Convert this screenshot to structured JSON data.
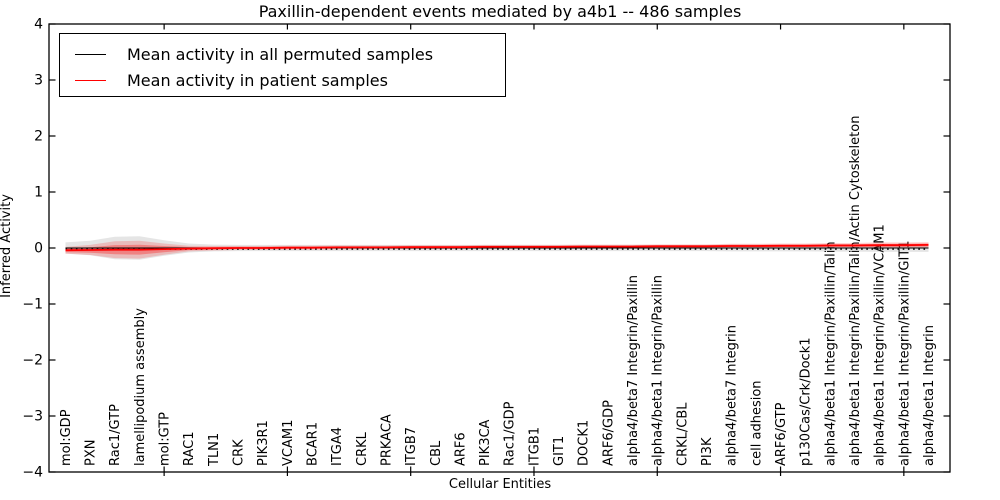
{
  "chart_data": {
    "type": "line",
    "title": "Paxillin-dependent events mediated by a4b1 -- 486 samples",
    "xlabel": "Cellular Entities",
    "ylabel": "Inferred Activity",
    "ylim": [
      -4,
      4
    ],
    "ytick_labels": [
      "4",
      "3",
      "2",
      "1",
      "0",
      "−1",
      "−2",
      "−3",
      "−4"
    ],
    "ytick_values": [
      4,
      3,
      2,
      1,
      0,
      -1,
      -2,
      -3,
      -4
    ],
    "grid": false,
    "legend_position": "upper left",
    "categories": [
      "mol:GDP",
      "PXN",
      "Rac1/GTP",
      "lamellipodium assembly",
      "mol:GTP",
      "RAC1",
      "TLN1",
      "CRK",
      "PIK3R1",
      "VCAM1",
      "BCAR1",
      "ITGA4",
      "CRKL",
      "PRKACA",
      "ITGB7",
      "CBL",
      "ARF6",
      "PIK3CA",
      "Rac1/GDP",
      "ITGB1",
      "GIT1",
      "DOCK1",
      "ARF6/GDP",
      "alpha4/beta7 Integrin/Paxillin",
      "alpha4/beta1 Integrin/Paxillin",
      "CRKL/CBL",
      "PI3K",
      "alpha4/beta7 Integrin",
      "cell adhesion",
      "ARF6/GTP",
      "p130Cas/Crk/Dock1",
      "alpha4/beta1 Integrin/Paxillin/Talin",
      "alpha4/beta1 Integrin/Paxillin/Talin/Actin Cytoskeleton",
      "alpha4/beta1 Integrin/Paxillin/VCAM1",
      "alpha4/beta1 Integrin/Paxillin/GIT1",
      "alpha4/beta1 Integrin"
    ],
    "series": [
      {
        "name": "Mean activity in all permuted samples",
        "color": "#000000",
        "style": "solid",
        "values": [
          0,
          0,
          0,
          0,
          0,
          0,
          0,
          0,
          0,
          0,
          0,
          0,
          0,
          0,
          0,
          0,
          0,
          0,
          0,
          0,
          0,
          0,
          0,
          0,
          0,
          0,
          0,
          0,
          0,
          0,
          0,
          0,
          0,
          0,
          0,
          0
        ]
      },
      {
        "name": "Mean activity in patient samples",
        "color": "#ff0000",
        "style": "solid",
        "values": [
          -0.04,
          -0.035,
          -0.03,
          -0.03,
          -0.02,
          -0.01,
          -0.005,
          0,
          0,
          0.005,
          0.005,
          0.01,
          0.01,
          0.01,
          0.015,
          0.015,
          0.015,
          0.02,
          0.02,
          0.02,
          0.02,
          0.025,
          0.025,
          0.025,
          0.03,
          0.03,
          0.03,
          0.035,
          0.035,
          0.04,
          0.04,
          0.045,
          0.045,
          0.05,
          0.05,
          0.055
        ]
      }
    ],
    "bands": [
      {
        "name": "permuted-samples-spread",
        "color": "#888888",
        "opacity": 0.22,
        "center_on_series": 0,
        "half_widths": [
          0.1,
          0.13,
          0.2,
          0.21,
          0.14,
          0.08,
          0.06,
          0.055,
          0.055,
          0.055,
          0.055,
          0.055,
          0.055,
          0.055,
          0.055,
          0.055,
          0.055,
          0.055,
          0.055,
          0.055,
          0.055,
          0.055,
          0.055,
          0.055,
          0.055,
          0.055,
          0.055,
          0.06,
          0.06,
          0.06,
          0.06,
          0.065,
          0.065,
          0.07,
          0.07,
          0.07
        ]
      },
      {
        "name": "patient-samples-spread",
        "color": "#ff0000",
        "opacity": 0.18,
        "center_on_series": 1,
        "half_widths": [
          0.06,
          0.09,
          0.15,
          0.16,
          0.1,
          0.05,
          0.04,
          0.035,
          0.035,
          0.035,
          0.035,
          0.035,
          0.035,
          0.035,
          0.035,
          0.035,
          0.035,
          0.035,
          0.035,
          0.035,
          0.035,
          0.035,
          0.035,
          0.035,
          0.035,
          0.035,
          0.035,
          0.04,
          0.04,
          0.04,
          0.04,
          0.045,
          0.045,
          0.05,
          0.05,
          0.05
        ]
      },
      {
        "name": "patient-samples-core-spread",
        "color": "#ff0000",
        "opacity": 0.3,
        "center_on_series": 1,
        "scale_of_band": 1,
        "scale": 0.55,
        "half_widths": [
          0.033,
          0.0495,
          0.0825,
          0.088,
          0.055,
          0.0275,
          0.022,
          0.019,
          0.019,
          0.019,
          0.019,
          0.019,
          0.019,
          0.019,
          0.019,
          0.019,
          0.019,
          0.019,
          0.019,
          0.019,
          0.019,
          0.019,
          0.019,
          0.019,
          0.019,
          0.019,
          0.019,
          0.022,
          0.022,
          0.022,
          0.022,
          0.025,
          0.025,
          0.0275,
          0.0275,
          0.0275
        ]
      }
    ],
    "zero_line": {
      "value": 0,
      "color": "#111111",
      "style": "dotted"
    }
  }
}
